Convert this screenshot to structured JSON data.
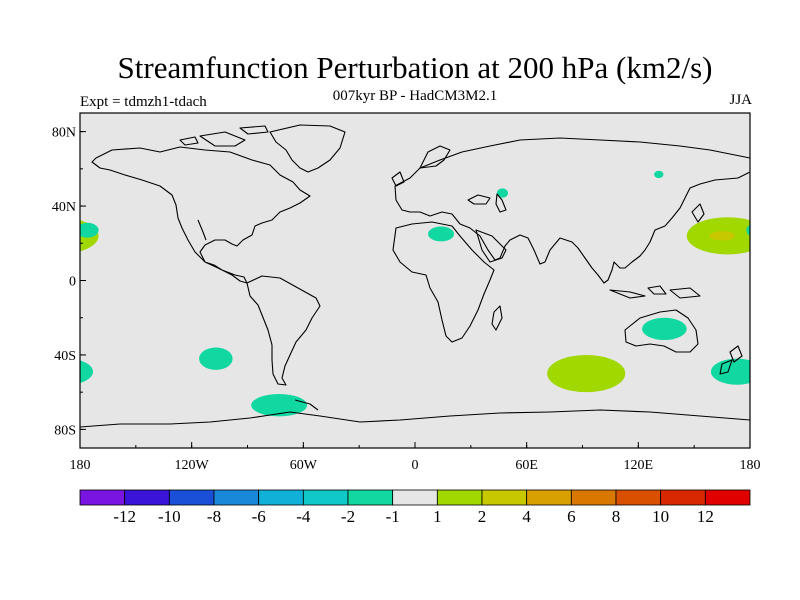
{
  "chart_data": {
    "type": "contour-map",
    "title": "Streamfunction Perturbation at 200 hPa (km2/s)",
    "subtitle": "007kyr BP - HadCM3M2.1",
    "experiment_label": "Expt = tdmzh1-tdach",
    "season": "JJA",
    "x_ticks": [
      "180",
      "120W",
      "60W",
      "0",
      "60E",
      "120E",
      "180"
    ],
    "y_ticks": [
      "80N",
      "40N",
      "0",
      "40S",
      "80S"
    ],
    "colorbar": {
      "labels": [
        "-12",
        "-10",
        "-8",
        "-6",
        "-4",
        "-2",
        "-1",
        "1",
        "2",
        "4",
        "6",
        "8",
        "10",
        "12"
      ],
      "colors": [
        "#7a14e0",
        "#3a14d8",
        "#1a50d8",
        "#1a88d8",
        "#10b0d8",
        "#10c8c8",
        "#10d8a0",
        "#e6e6e6",
        "#a0d800",
        "#c8c800",
        "#d8a000",
        "#d87800",
        "#d85000",
        "#d82800",
        "#e00000"
      ]
    },
    "regions": [
      {
        "name": "subtropical north pacific high",
        "value_range": [
          1,
          2
        ],
        "color": "#a0d800",
        "lon": 168,
        "lat": 24,
        "rx_deg": 22,
        "ry_deg": 10
      },
      {
        "name": "subtropical north pacific core",
        "value_range": [
          2,
          4
        ],
        "color": "#c8c800",
        "lon": 165,
        "lat": 24,
        "rx_deg": 7,
        "ry_deg": 2.5
      },
      {
        "name": "southern indian ocean high",
        "value_range": [
          1,
          2
        ],
        "color": "#a0d800",
        "lon": 92,
        "lat": -50,
        "rx_deg": 21,
        "ry_deg": 10
      },
      {
        "name": "east atlantic low",
        "value_range": [
          -2,
          -1
        ],
        "color": "#10d8a0",
        "lon": -176,
        "lat": 27,
        "rx_deg": 6,
        "ry_deg": 4
      },
      {
        "name": "central pacific low",
        "value_range": [
          -2,
          -1
        ],
        "color": "#10d8a0",
        "lon": -107,
        "lat": -42,
        "rx_deg": 9,
        "ry_deg": 6
      },
      {
        "name": "south pacific edge low",
        "value_range": [
          -2,
          -1
        ],
        "color": "#10d8a0",
        "lon": -180,
        "lat": -49,
        "rx_deg": 4,
        "ry_deg": 5
      },
      {
        "name": "drake passage low",
        "value_range": [
          -2,
          -1
        ],
        "color": "#10d8a0",
        "lon": -73,
        "lat": -67,
        "rx_deg": 15,
        "ry_deg": 6
      },
      {
        "name": "north africa low",
        "value_range": [
          -2,
          -1
        ],
        "color": "#10d8a0",
        "lon": 14,
        "lat": 25,
        "rx_deg": 7,
        "ry_deg": 4
      },
      {
        "name": "caspian low",
        "value_range": [
          -2,
          -1
        ],
        "color": "#10d8a0",
        "lon": 47,
        "lat": 47,
        "rx_deg": 3,
        "ry_deg": 2.5
      },
      {
        "name": "east siberia low",
        "value_range": [
          -2,
          -1
        ],
        "color": "#10d8a0",
        "lon": 131,
        "lat": 57,
        "rx_deg": 2.5,
        "ry_deg": 2
      },
      {
        "name": "australia low",
        "value_range": [
          -2,
          -1
        ],
        "color": "#10d8a0",
        "lon": 134,
        "lat": -26,
        "rx_deg": 12,
        "ry_deg": 6
      },
      {
        "name": "tasman low",
        "value_range": [
          -2,
          -1
        ],
        "color": "#10d8a0",
        "lon": 173,
        "lat": -49,
        "rx_deg": 14,
        "ry_deg": 7
      }
    ]
  }
}
